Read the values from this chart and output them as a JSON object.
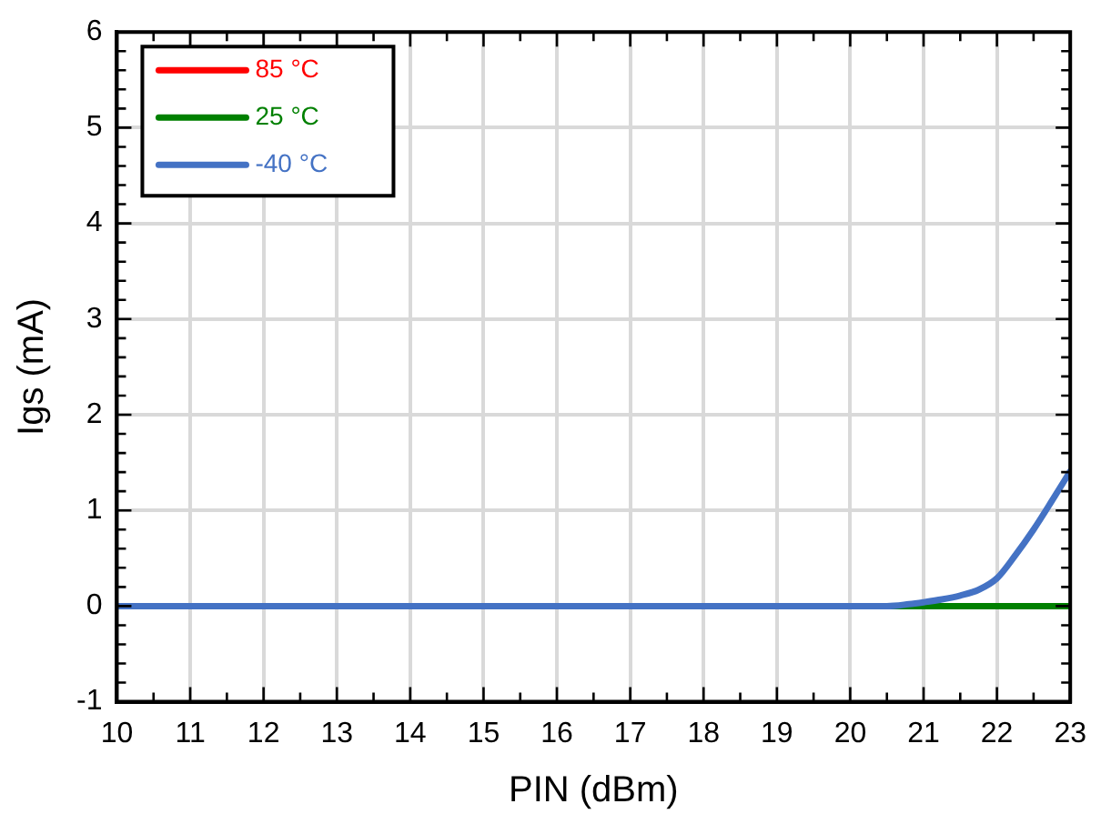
{
  "chart_data": {
    "type": "line",
    "xlabel": "PIN (dBm)",
    "ylabel": "Igs (mA)",
    "x": [
      10,
      11,
      12,
      13,
      14,
      15,
      16,
      17,
      18,
      19,
      20,
      20.5,
      20.8,
      21,
      21.25,
      21.5,
      21.75,
      22,
      22.25,
      22.5,
      22.75,
      23
    ],
    "series": [
      {
        "name": "85 °C",
        "color": "#ff0000",
        "values": [
          null,
          null,
          null,
          null,
          null,
          null,
          null,
          null,
          null,
          null,
          null,
          null,
          null,
          null,
          null,
          null,
          null,
          null,
          null,
          null,
          null,
          null
        ]
      },
      {
        "name": "25 °C",
        "color": "#008000",
        "values": [
          null,
          null,
          null,
          null,
          null,
          null,
          null,
          null,
          null,
          null,
          0,
          0,
          0,
          0,
          0,
          0,
          0,
          0,
          0,
          0,
          0,
          0
        ]
      },
      {
        "name": "-40 °C",
        "color": "#4472c4",
        "values": [
          0,
          0,
          0,
          0,
          0,
          0,
          0,
          0,
          0,
          0,
          0,
          0,
          0.02,
          0.04,
          0.07,
          0.11,
          0.17,
          0.29,
          0.53,
          0.8,
          1.1,
          1.41
        ]
      }
    ],
    "xlim": [
      10,
      23
    ],
    "xticks": [
      10,
      {
        "value": 10.5,
        "label": null
      },
      11,
      {
        "value": 11.5,
        "label": null
      },
      12,
      {
        "value": 12.5,
        "label": null
      },
      13,
      {
        "value": 13.5,
        "label": null
      },
      14,
      {
        "value": 14.5,
        "label": null
      },
      15,
      {
        "value": 15.5,
        "label": null
      },
      16,
      {
        "value": 16.5,
        "label": null
      },
      17,
      {
        "value": 17.5,
        "label": null
      },
      18,
      {
        "value": 18.5,
        "label": null
      },
      19,
      {
        "value": 19.5,
        "label": null
      },
      20,
      {
        "value": 20.5,
        "label": null
      },
      21,
      {
        "value": 21.5,
        "label": null
      },
      22,
      {
        "value": 22.5,
        "label": null
      },
      23
    ],
    "ylim": [
      -1,
      6
    ],
    "yticks": [
      -1,
      {
        "value": -0.8,
        "label": null
      },
      {
        "value": -0.6,
        "label": null
      },
      {
        "value": -0.4,
        "label": null
      },
      {
        "value": -0.2,
        "label": null
      },
      0,
      {
        "value": 0.2,
        "label": null
      },
      {
        "value": 0.4,
        "label": null
      },
      {
        "value": 0.6,
        "label": null
      },
      {
        "value": 0.8,
        "label": null
      },
      1,
      {
        "value": 1.2,
        "label": null
      },
      {
        "value": 1.4,
        "label": null
      },
      {
        "value": 1.6,
        "label": null
      },
      {
        "value": 1.8,
        "label": null
      },
      2,
      {
        "value": 2.2,
        "label": null
      },
      {
        "value": 2.4,
        "label": null
      },
      {
        "value": 2.6,
        "label": null
      },
      {
        "value": 2.8,
        "label": null
      },
      3,
      {
        "value": 3.2,
        "label": null
      },
      {
        "value": 3.4,
        "label": null
      },
      {
        "value": 3.6,
        "label": null
      },
      {
        "value": 3.8,
        "label": null
      },
      4,
      {
        "value": 4.2,
        "label": null
      },
      {
        "value": 4.4,
        "label": null
      },
      {
        "value": 4.6,
        "label": null
      },
      {
        "value": 4.8,
        "label": null
      },
      5,
      {
        "value": 5.2,
        "label": null
      },
      {
        "value": 5.4,
        "label": null
      },
      {
        "value": 5.6,
        "label": null
      },
      {
        "value": 5.8,
        "label": null
      },
      6
    ],
    "grid": true,
    "legend": "top left",
    "marker": "none",
    "line_style": "solid"
  }
}
